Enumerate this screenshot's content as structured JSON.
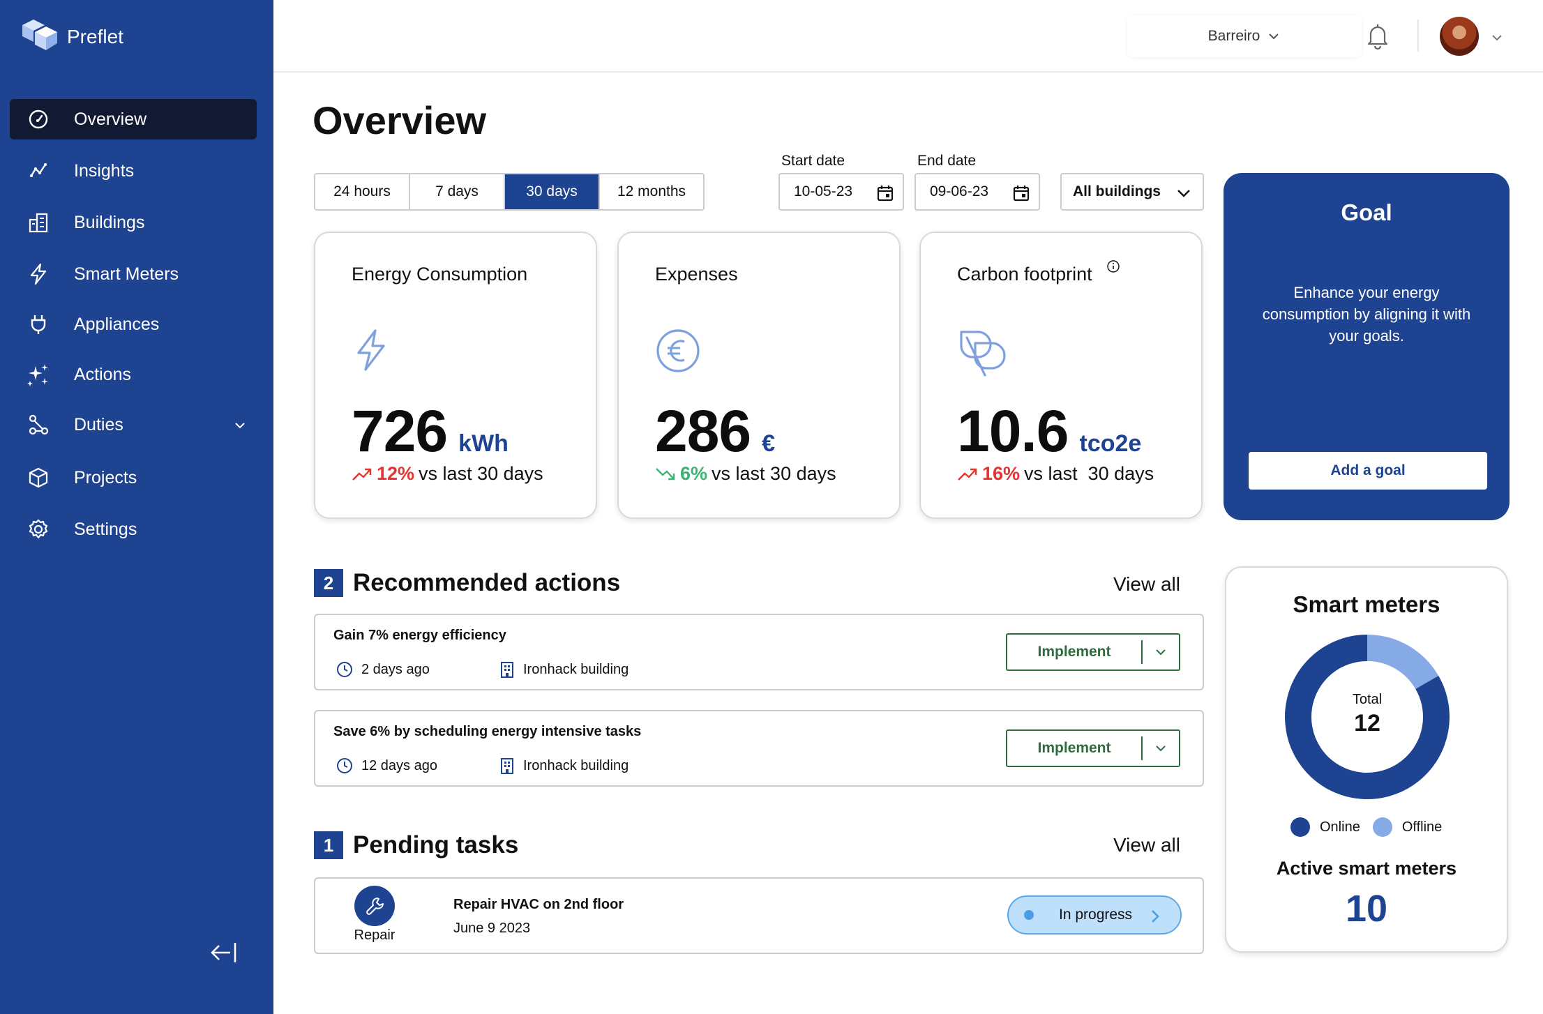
{
  "app": {
    "name": "Preflet"
  },
  "sidebar": {
    "items": [
      {
        "label": "Overview",
        "icon": "gauge-icon"
      },
      {
        "label": "Insights",
        "icon": "trend-icon"
      },
      {
        "label": "Buildings",
        "icon": "building-icon"
      },
      {
        "label": "Smart Meters",
        "icon": "bolt-icon"
      },
      {
        "label": "Appliances",
        "icon": "plug-icon"
      },
      {
        "label": "Actions",
        "icon": "sparkles-icon"
      },
      {
        "label": "Duties",
        "icon": "network-icon"
      },
      {
        "label": "Projects",
        "icon": "cube-icon"
      },
      {
        "label": "Settings",
        "icon": "gear-icon"
      }
    ],
    "active_index": 0
  },
  "header": {
    "location": "Barreiro"
  },
  "page": {
    "title": "Overview"
  },
  "filters": {
    "ranges": [
      "24 hours",
      "7 days",
      "30 days",
      "12 months"
    ],
    "active_range": "30 days",
    "start_label": "Start date",
    "start_value": "10-05-23",
    "end_label": "End date",
    "end_value": "09-06-23",
    "buildings": "All buildings"
  },
  "kpis": [
    {
      "title": "Energy Consumption",
      "value": "726",
      "unit": "kWh",
      "pct": "12%",
      "suffix": "vs last 30 days",
      "trend": "up"
    },
    {
      "title": "Expenses",
      "value": "286",
      "unit": "€",
      "pct": "6%",
      "suffix": "vs last 30 days",
      "trend": "down"
    },
    {
      "title": "Carbon footprint",
      "value": "10.6",
      "unit": "tco2e",
      "pct": "16%",
      "suffix": "vs last  30 days",
      "trend": "up"
    }
  ],
  "goal": {
    "title": "Goal",
    "text": "Enhance your energy consumption by aligning it with your goals.",
    "button": "Add a goal"
  },
  "recommended": {
    "count": "2",
    "title": "Recommended actions",
    "view_all": "View all",
    "items": [
      {
        "title": "Gain 7% energy efficiency",
        "time": "2 days ago",
        "building": "Ironhack building",
        "button": "Implement"
      },
      {
        "title": "Save 6% by scheduling energy intensive tasks",
        "time": "12 days ago",
        "building": "Ironhack building",
        "button": "Implement"
      }
    ]
  },
  "pending": {
    "count": "1",
    "title": "Pending tasks",
    "view_all": "View all",
    "items": [
      {
        "type": "Repair",
        "title": "Repair HVAC on 2nd floor",
        "date": "June 9 2023",
        "status": "In progress"
      }
    ]
  },
  "smart_meters": {
    "title": "Smart meters",
    "total_label": "Total",
    "total": "12",
    "legend_online": "Online",
    "legend_offline": "Offline",
    "active_label": "Active smart meters",
    "active": "10",
    "online_count": 10,
    "offline_count": 2,
    "colors": {
      "online": "#1e4391",
      "offline": "#86aae6"
    }
  },
  "colors": {
    "brand": "#1e4391",
    "up": "#e3342f",
    "down": "#3cb371",
    "implement": "#2f6b3e"
  }
}
